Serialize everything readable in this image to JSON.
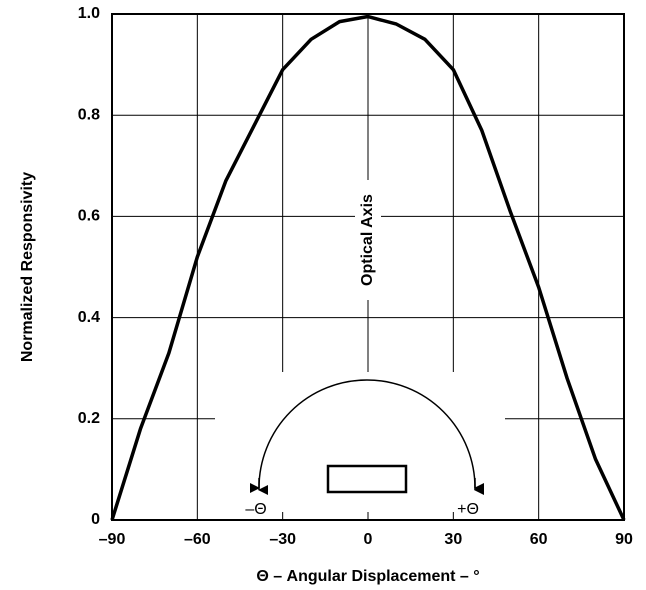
{
  "chart_data": {
    "type": "line",
    "xlabel": "Θ – Angular Displacement – °",
    "ylabel": "Normalized Responsivity",
    "annotations": [
      "Optical Axis",
      "–Θ",
      "+Θ"
    ],
    "x": [
      -90,
      -80,
      -70,
      -60,
      -50,
      -40,
      -30,
      -20,
      -10,
      0,
      10,
      20,
      30,
      40,
      50,
      60,
      70,
      80,
      90
    ],
    "values": [
      0,
      0.18,
      0.33,
      0.52,
      0.67,
      0.78,
      0.89,
      0.95,
      0.985,
      0.995,
      0.98,
      0.95,
      0.89,
      0.77,
      0.61,
      0.46,
      0.28,
      0.12,
      0
    ],
    "color": "#000000",
    "xlim": [
      -90,
      90
    ],
    "xticks": [
      {
        "value": -90,
        "label": "–90"
      },
      {
        "value": -60,
        "label": "–60"
      },
      {
        "value": -30,
        "label": "–30"
      },
      0,
      30,
      60,
      90
    ],
    "ylim": [
      0,
      1
    ],
    "yticks": [
      0,
      0.2,
      0.4,
      0.6,
      0.8,
      {
        "value": 1,
        "label": "1.0"
      }
    ],
    "grid": true
  }
}
